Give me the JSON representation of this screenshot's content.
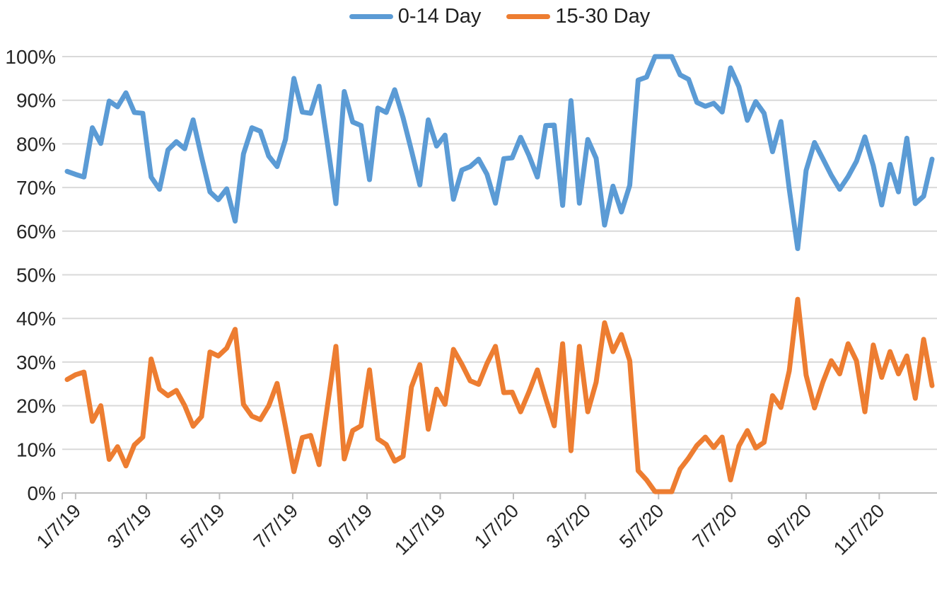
{
  "chart_data": {
    "type": "line",
    "title": "",
    "legend_position": "top",
    "grid": "horizontal",
    "x_unit": "weeks",
    "points_per_series": 104,
    "ylim": [
      0,
      100
    ],
    "y_tick_labels": [
      "0%",
      "10%",
      "20%",
      "30%",
      "40%",
      "50%",
      "60%",
      "70%",
      "80%",
      "90%",
      "100%"
    ],
    "x_ticks": [
      {
        "label": "1/7/19",
        "week": 1.0
      },
      {
        "label": "3/7/19",
        "week": 9.43
      },
      {
        "label": "5/7/19",
        "week": 18.14
      },
      {
        "label": "7/7/19",
        "week": 26.86
      },
      {
        "label": "9/7/19",
        "week": 35.71
      },
      {
        "label": "11/7/19",
        "week": 44.43
      },
      {
        "label": "1/7/20",
        "week": 53.14
      },
      {
        "label": "3/7/20",
        "week": 61.71
      },
      {
        "label": "5/7/20",
        "week": 70.43
      },
      {
        "label": "7/7/20",
        "week": 79.14
      },
      {
        "label": "9/7/20",
        "week": 88.0
      },
      {
        "label": "11/7/20",
        "week": 96.71
      }
    ],
    "series": [
      {
        "name": "0-14 Day",
        "color": "#5B9BD5",
        "values": [
          73.7,
          73,
          72.4,
          83.7,
          80.1,
          89.8,
          88.5,
          91.7,
          87.2,
          87,
          72.4,
          69.6,
          78.6,
          80.5,
          78.9,
          85.5,
          77,
          69,
          67.2,
          69.7,
          62.3,
          77.7,
          83.7,
          82.9,
          77.2,
          74.8,
          81,
          95,
          87.3,
          87,
          93.2,
          80,
          66.3,
          92,
          85,
          84.2,
          71.8,
          88.2,
          87.2,
          92.4,
          86,
          78.5,
          70.6,
          85.5,
          79.5,
          82,
          67.3,
          74,
          74.8,
          76.5,
          73,
          66.4,
          76.6,
          76.8,
          81.5,
          77.3,
          72.4,
          84.2,
          84.3,
          65.9,
          89.9,
          66.4,
          81,
          76.7,
          61.4,
          70.3,
          64.4,
          70.5,
          94.6,
          95.3,
          100,
          100,
          100,
          95.8,
          94.8,
          89.5,
          88.6,
          89.3,
          87.3,
          97.4,
          93.1,
          85.4,
          89.7,
          87,
          78.2,
          85.1,
          69.6,
          56,
          73.9,
          80.3,
          76.6,
          72.8,
          69.6,
          72.5,
          76,
          81.6,
          75,
          66,
          75.3,
          69,
          81.3,
          66.3,
          68,
          76.5
        ]
      },
      {
        "name": "15-30 Day",
        "color": "#ED7D31",
        "values": [
          26,
          27.1,
          27.7,
          16.4,
          20,
          7.7,
          10.6,
          6.2,
          11,
          12.8,
          30.7,
          23.8,
          22.3,
          23.5,
          20,
          15.3,
          17.5,
          32.3,
          31.4,
          33.2,
          37.5,
          20.3,
          17.6,
          16.8,
          20,
          25.1,
          15.2,
          4.9,
          12.7,
          13.2,
          6.5,
          20,
          33.6,
          7.8,
          14.3,
          15.4,
          28.2,
          12.4,
          11.1,
          7.3,
          8.4,
          24.3,
          29.4,
          14.6,
          23.8,
          20.3,
          32.9,
          29.5,
          25.7,
          24.9,
          29.7,
          33.6,
          23,
          23.1,
          18.6,
          23.2,
          28.2,
          21.6,
          15.4,
          34.2,
          9.7,
          33.6,
          18.6,
          25.4,
          39,
          32.4,
          36.3,
          30.3,
          5.1,
          3,
          0.3,
          0.3,
          0.3,
          5.5,
          8,
          10.9,
          12.8,
          10.4,
          12.8,
          3,
          10.8,
          14.3,
          10.3,
          11.6,
          22.3,
          19.6,
          28,
          44.4,
          27,
          19.5,
          25.4,
          30.3,
          27.3,
          34.2,
          30.3,
          18.6,
          33.9,
          26.5,
          32.4,
          27.3,
          31.4,
          21.7,
          35.2,
          24.6
        ]
      }
    ],
    "colors": {
      "gridline": "#D9D9D9",
      "axis_line": "#BFBFBF",
      "tick_mark": "#BFBFBF",
      "axis_text": "#262626",
      "legend_text": "#1f1f1f"
    }
  },
  "legend": {
    "items": [
      {
        "label": "0-14 Day"
      },
      {
        "label": "15-30 Day"
      }
    ]
  }
}
